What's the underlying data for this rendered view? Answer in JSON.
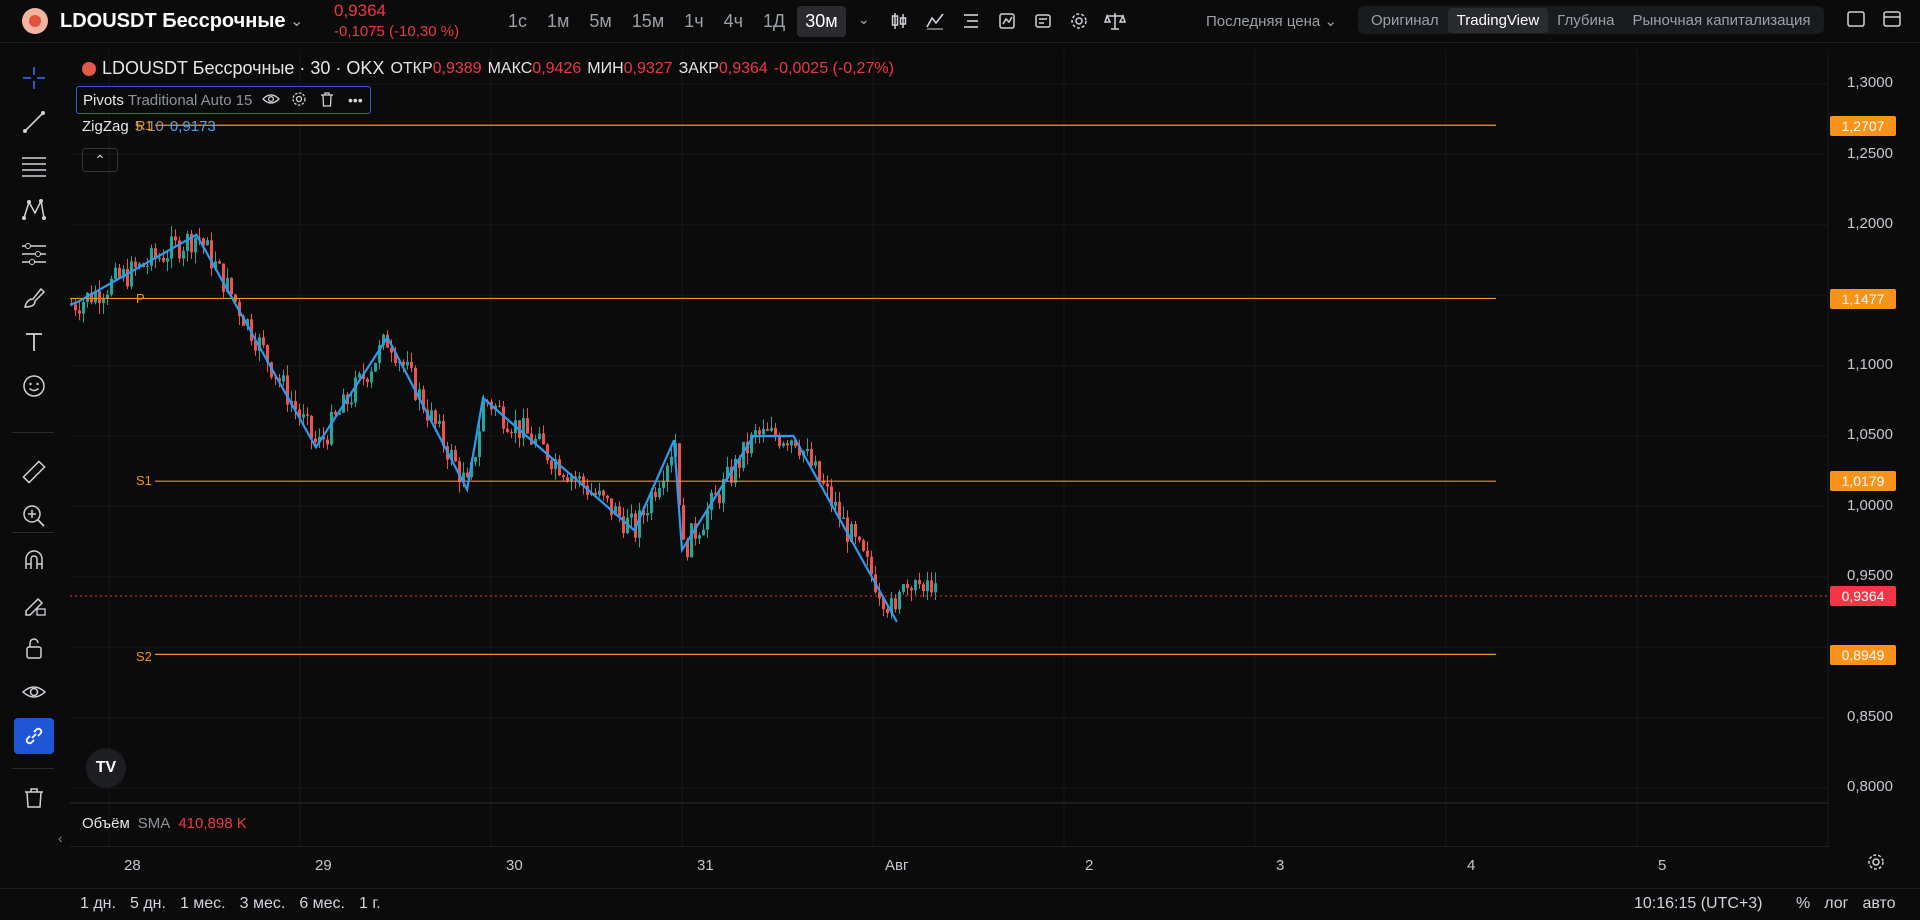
{
  "symbol": {
    "name": "LDOUSDT Бессрочные",
    "price": "0,9364",
    "change": "-0,1075 (-10,30 %)"
  },
  "intervals": [
    {
      "label": "1с",
      "active": false
    },
    {
      "label": "1м",
      "active": false
    },
    {
      "label": "5м",
      "active": false
    },
    {
      "label": "15м",
      "active": false
    },
    {
      "label": "1ч",
      "active": false
    },
    {
      "label": "4ч",
      "active": false
    },
    {
      "label": "1Д",
      "active": false
    },
    {
      "label": "30м",
      "active": true
    }
  ],
  "toolbar_icons": [
    "candles-icon",
    "indicators-icon",
    "compare-icon",
    "alert-icon",
    "replay-icon",
    "settings-icon",
    "scales-icon"
  ],
  "price_type": "Последняя цена",
  "modes": [
    {
      "label": "Оригинал",
      "active": false
    },
    {
      "label": "TradingView",
      "active": true
    },
    {
      "label": "Глубина",
      "active": false
    },
    {
      "label": "Рыночная капитализация",
      "active": false
    }
  ],
  "legend": {
    "title": "LDOUSDT Бессрочные · 30 · OKX",
    "open_k": "ОТКР",
    "open_v": "0,9389",
    "high_k": "МАКС",
    "high_v": "0,9426",
    "low_k": "МИН",
    "low_v": "0,9327",
    "close_k": "ЗАКР",
    "close_v": "0,9364",
    "chg": "-0,0025 (-0,27%)"
  },
  "pivots": {
    "name": "Pivots",
    "params": "Traditional Auto 15"
  },
  "zigzag": {
    "name": "ZigZag",
    "params": "5 10",
    "value": "0,9173"
  },
  "pivot_labels": {
    "r1": "R1",
    "p": "P",
    "s1": "S1",
    "s2": "S2"
  },
  "volume": {
    "name": "Объём",
    "params": "SMA",
    "value": "410,898 K"
  },
  "y_axis": [
    "1,3000",
    "1,2500",
    "1,2000",
    "1,1000",
    "1,0500",
    "1,0000",
    "0,9500",
    "0,8500",
    "0,8000"
  ],
  "price_badges": {
    "r1": "1,2707",
    "p": "1,1477",
    "s1": "1,0179",
    "last": "0,9364",
    "s2": "0,8949"
  },
  "x_axis": [
    "28",
    "29",
    "30",
    "31",
    "Авг",
    "2",
    "3",
    "4",
    "5"
  ],
  "ranges": [
    "1 дн.",
    "5 дн.",
    "1 мес.",
    "3 мес.",
    "6 мес.",
    "1 г."
  ],
  "clock": "10:16:15 (UTC+3)",
  "bottom_opts": {
    "pct": "%",
    "log": "лог",
    "auto": "авто"
  },
  "colors": {
    "up": "#26a69a",
    "down": "#ef5350",
    "zigzag": "#2f9bf0",
    "pivot": "#f7931a",
    "last": "#f23645"
  },
  "chart_data": {
    "type": "line",
    "title": "LDOUSDT Бессрочные · 30 · OKX",
    "x": [
      "28",
      "29",
      "30",
      "31",
      "Авг",
      "2",
      "3",
      "4",
      "5"
    ],
    "ylim": [
      0.78,
      1.31
    ],
    "log_scale": false,
    "grid": true,
    "series": [
      {
        "name": "ZigZag",
        "points": [
          [
            "27 Jul 20:00",
            1.145
          ],
          [
            "28 Jul 11:00",
            1.193
          ],
          [
            "29 Jul 02:00",
            1.042
          ],
          [
            "29 Jul 11:00",
            1.12
          ],
          [
            "29 Jul 21:00",
            1.012
          ],
          [
            "29 Jul 23:00",
            1.077
          ],
          [
            "30 Jul 18:00",
            0.983
          ],
          [
            "30 Jul 23:00",
            1.047
          ],
          [
            "31 Jul 00:00",
            0.969
          ],
          [
            "31 Jul 09:00",
            1.05
          ],
          [
            "31 Jul 14:00",
            1.05
          ],
          [
            "1 Aug 03:00",
            0.918
          ]
        ]
      }
    ],
    "pivot_levels": {
      "R1": 1.2707,
      "P": 1.1477,
      "S1": 1.0179,
      "S2": 0.8949
    },
    "last_price": 0.9364
  }
}
